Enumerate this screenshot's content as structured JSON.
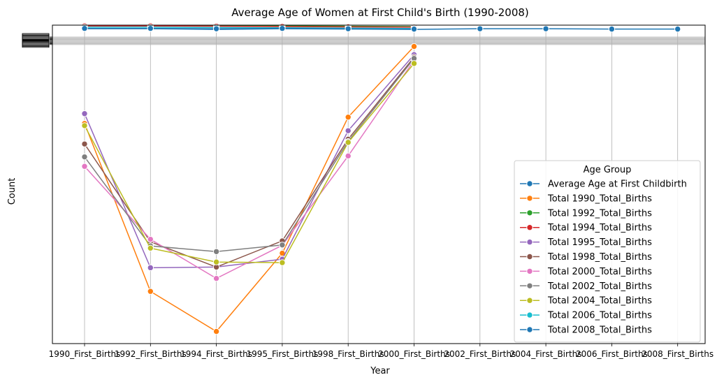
{
  "chart_data": {
    "type": "line",
    "title": "Average Age of Women at First Child's Birth (1990-2008)",
    "xlabel": "Year",
    "ylabel": "Count",
    "ylim": [
      0,
      1
    ],
    "grid": "x",
    "categories": [
      "1990_First_Births",
      "1992_First_Births",
      "1994_First_Births",
      "1995_First_Births",
      "1998_First_Births",
      "2000_First_Births",
      "2002_First_Births",
      "2004_First_Births",
      "2006_First_Births",
      "2008_First_Births"
    ],
    "legend": {
      "title": "Age Group",
      "position": "lower-right"
    },
    "series": [
      {
        "name": "Average Age at First Childbirth",
        "color": "#1f77b4",
        "values": [
          0.993,
          0.993,
          0.991,
          0.993,
          0.992,
          0.991,
          0.993,
          0.993,
          0.992,
          0.992
        ]
      },
      {
        "name": "Total 1990_Total_Births",
        "color": "#ff7f0e",
        "values": [
          0.693,
          0.161,
          0.034,
          0.282,
          0.713,
          0.937,
          null,
          null,
          null,
          null
        ]
      },
      {
        "name": "Total 1992_Total_Births",
        "color": "#2ca02c",
        "values": [
          1.004,
          1.004,
          1.003,
          1.002,
          1.001,
          1.0,
          null,
          null,
          null,
          null
        ]
      },
      {
        "name": "Total 1994_Total_Births",
        "color": "#d62728",
        "values": [
          1.002,
          1.002,
          1.001,
          1.0,
          0.999,
          0.998,
          null,
          null,
          null,
          null
        ]
      },
      {
        "name": "Total 1995_Total_Births",
        "color": "#9467bd",
        "values": [
          0.724,
          0.236,
          0.238,
          0.263,
          0.67,
          0.911,
          null,
          null,
          null,
          null
        ]
      },
      {
        "name": "Total 1998_Total_Births",
        "color": "#8c564b",
        "values": [
          0.628,
          0.318,
          0.238,
          0.321,
          0.643,
          0.903,
          null,
          null,
          null,
          null
        ]
      },
      {
        "name": "Total 2000_Total_Births",
        "color": "#e377c2",
        "values": [
          0.557,
          0.326,
          0.202,
          0.307,
          0.59,
          0.893,
          null,
          null,
          null,
          null
        ]
      },
      {
        "name": "Total 2002_Total_Births",
        "color": "#7f7f7f",
        "values": [
          0.587,
          0.305,
          0.287,
          0.308,
          0.636,
          0.899,
          null,
          null,
          null,
          null
        ]
      },
      {
        "name": "Total 2004_Total_Births",
        "color": "#bcbd22",
        "values": [
          0.686,
          0.298,
          0.254,
          0.252,
          0.633,
          0.883,
          null,
          null,
          null,
          null
        ]
      },
      {
        "name": "Total 2006_Total_Births",
        "color": "#17becf",
        "values": [
          0.998,
          0.998,
          0.997,
          0.996,
          0.995,
          0.994,
          null,
          null,
          null,
          null
        ]
      },
      {
        "name": "Total 2008_Total_Births",
        "color": "#1f77b4",
        "values": [
          0.994,
          0.994,
          0.993,
          0.994,
          0.993,
          0.992,
          null,
          null,
          null,
          null
        ]
      }
    ]
  }
}
